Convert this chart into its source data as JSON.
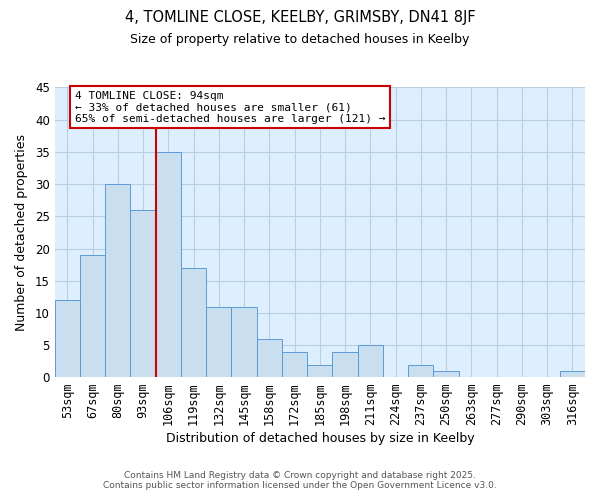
{
  "title": "4, TOMLINE CLOSE, KEELBY, GRIMSBY, DN41 8JF",
  "subtitle": "Size of property relative to detached houses in Keelby",
  "xlabel": "Distribution of detached houses by size in Keelby",
  "ylabel": "Number of detached properties",
  "categories": [
    "53sqm",
    "67sqm",
    "80sqm",
    "93sqm",
    "106sqm",
    "119sqm",
    "132sqm",
    "145sqm",
    "158sqm",
    "172sqm",
    "185sqm",
    "198sqm",
    "211sqm",
    "224sqm",
    "237sqm",
    "250sqm",
    "263sqm",
    "277sqm",
    "290sqm",
    "303sqm",
    "316sqm"
  ],
  "values": [
    12,
    19,
    30,
    26,
    35,
    17,
    11,
    11,
    6,
    4,
    2,
    4,
    5,
    0,
    2,
    1,
    0,
    0,
    0,
    0,
    1
  ],
  "bar_color": "#c9dff0",
  "bar_edge_color": "#5b9bd5",
  "vline_color": "#cc0000",
  "annotation_title": "4 TOMLINE CLOSE: 94sqm",
  "annotation_line2": "← 33% of detached houses are smaller (61)",
  "annotation_line3": "65% of semi-detached houses are larger (121) →",
  "annotation_box_edge": "#cc0000",
  "ylim": [
    0,
    45
  ],
  "yticks": [
    0,
    5,
    10,
    15,
    20,
    25,
    30,
    35,
    40,
    45
  ],
  "background_color": "#ffffff",
  "plot_bg_color": "#ddeeff",
  "grid_color": "#b8cfe0",
  "footer_line1": "Contains HM Land Registry data © Crown copyright and database right 2025.",
  "footer_line2": "Contains public sector information licensed under the Open Government Licence v3.0."
}
